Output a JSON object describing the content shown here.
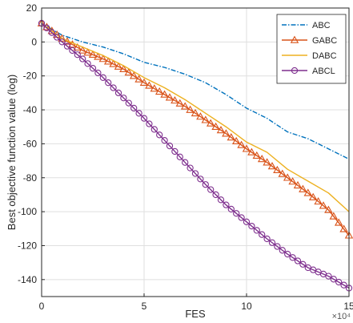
{
  "chart_data": {
    "type": "line",
    "title": "",
    "xlabel": "FES",
    "ylabel": "Best objective function value (log)",
    "x_exponent_label": "×10⁴",
    "xlim": [
      0,
      15
    ],
    "ylim": [
      -150,
      20
    ],
    "x_ticks": [
      0,
      5,
      10,
      15
    ],
    "x_tick_labels": [
      "0",
      "5",
      "10",
      "15"
    ],
    "y_ticks": [
      -140,
      -120,
      -100,
      -80,
      -60,
      -40,
      -20,
      0,
      20
    ],
    "y_tick_labels": [
      "-140",
      "-120",
      "-100",
      "-80",
      "-60",
      "-40",
      "-20",
      "0",
      "20"
    ],
    "grid": true,
    "legend_position": "top-right",
    "series": [
      {
        "name": "ABC",
        "color": "#0072BD",
        "style": "dashdot",
        "marker": "none",
        "x": [
          0,
          1,
          2,
          3,
          4,
          5,
          6,
          7,
          8,
          9,
          10,
          11,
          12,
          13,
          14,
          15
        ],
        "y": [
          11,
          4,
          0,
          -3,
          -7,
          -12,
          -15,
          -19,
          -24,
          -31,
          -39,
          -45,
          -53,
          -57,
          -63,
          -69
        ]
      },
      {
        "name": "GABC",
        "color": "#D95319",
        "style": "solid",
        "marker": "triangle",
        "x": [
          0,
          1,
          2,
          3,
          4,
          5,
          6,
          7,
          8,
          9,
          10,
          11,
          12,
          13,
          14,
          15
        ],
        "y": [
          11,
          2,
          -5,
          -10,
          -16,
          -24,
          -31,
          -38,
          -46,
          -54,
          -63,
          -71,
          -80,
          -89,
          -99,
          -114
        ]
      },
      {
        "name": "DABC",
        "color": "#EDB120",
        "style": "solid",
        "marker": "none",
        "x": [
          0,
          1,
          2,
          3,
          4,
          5,
          6,
          7,
          8,
          9,
          10,
          11,
          12,
          13,
          14,
          15
        ],
        "y": [
          11,
          2,
          -3,
          -8,
          -14,
          -21,
          -27,
          -34,
          -42,
          -50,
          -59,
          -65,
          -75,
          -82,
          -89,
          -100
        ]
      },
      {
        "name": "ABCL",
        "color": "#7E2F8E",
        "style": "solid",
        "marker": "circle",
        "x": [
          0,
          1,
          2,
          3,
          4,
          5,
          6,
          7,
          8,
          9,
          10,
          11,
          12,
          13,
          14,
          15
        ],
        "y": [
          11,
          0,
          -10,
          -21,
          -33,
          -45,
          -58,
          -71,
          -84,
          -96,
          -106,
          -116,
          -125,
          -133,
          -138,
          -145
        ]
      }
    ]
  }
}
